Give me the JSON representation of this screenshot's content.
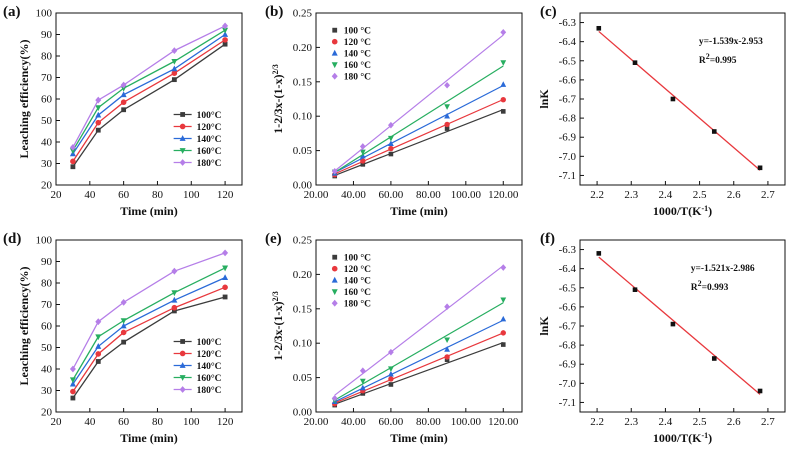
{
  "chart_data": [
    {
      "panel": "(a)",
      "type": "line",
      "xlabel": "Time (min)",
      "ylabel": "Leaching efficiency(%)",
      "xlim": [
        20,
        130
      ],
      "ylim": [
        20,
        100
      ],
      "xticks": [
        20,
        40,
        60,
        80,
        100,
        120
      ],
      "yticks": [
        20,
        30,
        40,
        50,
        60,
        70,
        80,
        90,
        100
      ],
      "x": [
        30,
        45,
        60,
        90,
        120
      ],
      "legend_position": "bottom-right",
      "series": [
        {
          "name": "100°C",
          "color": "#3c3c3c",
          "marker": "square",
          "values": [
            28.5,
            45.5,
            55,
            69,
            85.5
          ]
        },
        {
          "name": "120°C",
          "color": "#e8383d",
          "marker": "circle",
          "values": [
            31,
            49,
            58.5,
            72,
            87.5
          ]
        },
        {
          "name": "140°C",
          "color": "#2a6ad8",
          "marker": "triangle-up",
          "values": [
            34.5,
            52.5,
            62,
            74,
            90
          ]
        },
        {
          "name": "160°C",
          "color": "#27ae60",
          "marker": "triangle-down",
          "values": [
            36,
            56,
            65,
            77.5,
            92
          ]
        },
        {
          "name": "180°C",
          "color": "#b57ee8",
          "marker": "diamond",
          "values": [
            37.5,
            59.5,
            66.5,
            82.5,
            94
          ]
        }
      ]
    },
    {
      "panel": "(b)",
      "type": "scatter",
      "xlabel": "Time (min)",
      "ylabel": "1-2/3x-(1-x)^2/3",
      "ylabel_main": "1-2/3x-(1-x)",
      "ylabel_sup": "2/3",
      "xlim": [
        20,
        130
      ],
      "ylim": [
        0,
        0.25
      ],
      "xticks": [
        20,
        40,
        60,
        80,
        100,
        120
      ],
      "yticks": [
        0.0,
        0.05,
        0.1,
        0.15,
        0.2,
        0.25
      ],
      "x": [
        30,
        45,
        60,
        90,
        120
      ],
      "fit_lines": true,
      "legend_position": "top-left",
      "series": [
        {
          "name": "100 °C",
          "color": "#3c3c3c",
          "marker": "square",
          "values": [
            0.013,
            0.03,
            0.045,
            0.082,
            0.107
          ]
        },
        {
          "name": "120 °C",
          "color": "#e8383d",
          "marker": "circle",
          "values": [
            0.015,
            0.035,
            0.053,
            0.088,
            0.124
          ]
        },
        {
          "name": "140 °C",
          "color": "#2a6ad8",
          "marker": "triangle-up",
          "values": [
            0.017,
            0.042,
            0.06,
            0.1,
            0.146
          ]
        },
        {
          "name": "160 °C",
          "color": "#27ae60",
          "marker": "triangle-down",
          "values": [
            0.019,
            0.048,
            0.068,
            0.114,
            0.178
          ]
        },
        {
          "name": "180 °C",
          "color": "#b57ee8",
          "marker": "diamond",
          "values": [
            0.02,
            0.056,
            0.087,
            0.145,
            0.222
          ]
        }
      ]
    },
    {
      "panel": "(c)",
      "type": "scatter",
      "xlabel": "1000/T(K⁻¹)",
      "xlabel_main": "1000/T(K",
      "xlabel_sup": "-1",
      "xlabel_end": ")",
      "ylabel": "lnK",
      "xlim": [
        2.15,
        2.75
      ],
      "ylim": [
        -7.15,
        -6.25
      ],
      "xticks": [
        2.2,
        2.3,
        2.4,
        2.5,
        2.6,
        2.7
      ],
      "yticks": [
        -6.3,
        -6.4,
        -6.5,
        -6.6,
        -6.7,
        -6.8,
        -6.9,
        -7.0,
        -7.1
      ],
      "x": [
        2.205,
        2.311,
        2.422,
        2.543,
        2.677
      ],
      "series": [
        {
          "name": "data",
          "color": "#111111",
          "marker": "square",
          "values": [
            -6.33,
            -6.51,
            -6.7,
            -6.87,
            -7.06
          ]
        }
      ],
      "fit": {
        "slope": -1.539,
        "intercept": -2.953,
        "color": "#e8383d"
      },
      "equation": "y=-1.539x-2.953",
      "r2_label": "R",
      "r2_value": "=0.995"
    },
    {
      "panel": "(d)",
      "type": "line",
      "xlabel": "Time (min)",
      "ylabel": "Leaching efficiency(%)",
      "xlim": [
        20,
        130
      ],
      "ylim": [
        20,
        100
      ],
      "xticks": [
        20,
        40,
        60,
        80,
        100,
        120
      ],
      "yticks": [
        20,
        30,
        40,
        50,
        60,
        70,
        80,
        90,
        100
      ],
      "x": [
        30,
        45,
        60,
        90,
        120
      ],
      "legend_position": "bottom-right",
      "series": [
        {
          "name": "100°C",
          "color": "#3c3c3c",
          "marker": "square",
          "values": [
            26.5,
            43.5,
            52.5,
            67,
            73.5
          ]
        },
        {
          "name": "120°C",
          "color": "#e8383d",
          "marker": "circle",
          "values": [
            29.5,
            47,
            57,
            68.5,
            78
          ]
        },
        {
          "name": "140°C",
          "color": "#2a6ad8",
          "marker": "triangle-up",
          "values": [
            33,
            50.5,
            60,
            72,
            82.5
          ]
        },
        {
          "name": "160°C",
          "color": "#27ae60",
          "marker": "triangle-down",
          "values": [
            35,
            55,
            62.5,
            75.5,
            87
          ]
        },
        {
          "name": "180°C",
          "color": "#b57ee8",
          "marker": "diamond",
          "values": [
            40,
            62,
            71,
            85.5,
            94
          ]
        }
      ]
    },
    {
      "panel": "(e)",
      "type": "scatter",
      "xlabel": "Time (min)",
      "ylabel": "1-2/3x-(1-x)^2/3",
      "ylabel_main": "1-2/3x-(1-x)",
      "ylabel_sup": "2/3",
      "xlim": [
        20,
        130
      ],
      "ylim": [
        0,
        0.25
      ],
      "xticks": [
        20,
        40,
        60,
        80,
        100,
        120
      ],
      "yticks": [
        0.0,
        0.05,
        0.1,
        0.15,
        0.2,
        0.25
      ],
      "x": [
        30,
        45,
        60,
        90,
        120
      ],
      "fit_lines": true,
      "legend_position": "top-left",
      "series": [
        {
          "name": "100 °C",
          "color": "#3c3c3c",
          "marker": "square",
          "values": [
            0.01,
            0.027,
            0.04,
            0.076,
            0.098
          ]
        },
        {
          "name": "120 °C",
          "color": "#e8383d",
          "marker": "circle",
          "values": [
            0.012,
            0.031,
            0.048,
            0.08,
            0.115
          ]
        },
        {
          "name": "140 °C",
          "color": "#2a6ad8",
          "marker": "triangle-up",
          "values": [
            0.015,
            0.035,
            0.055,
            0.091,
            0.135
          ]
        },
        {
          "name": "160 °C",
          "color": "#27ae60",
          "marker": "triangle-down",
          "values": [
            0.017,
            0.045,
            0.063,
            0.105,
            0.163
          ]
        },
        {
          "name": "180 °C",
          "color": "#b57ee8",
          "marker": "diamond",
          "values": [
            0.02,
            0.06,
            0.087,
            0.153,
            0.21
          ]
        }
      ]
    },
    {
      "panel": "(f)",
      "type": "scatter",
      "xlabel": "1000/T(K⁻¹)",
      "xlabel_main": "1000/T(K",
      "xlabel_sup": "-1",
      "xlabel_end": ")",
      "ylabel": "lnK",
      "xlim": [
        2.15,
        2.75
      ],
      "ylim": [
        -7.15,
        -6.25
      ],
      "xticks": [
        2.2,
        2.3,
        2.4,
        2.5,
        2.6,
        2.7
      ],
      "yticks": [
        -6.3,
        -6.4,
        -6.5,
        -6.6,
        -6.7,
        -6.8,
        -6.9,
        -7.0,
        -7.1
      ],
      "x": [
        2.205,
        2.311,
        2.422,
        2.543,
        2.677
      ],
      "series": [
        {
          "name": "data",
          "color": "#111111",
          "marker": "square",
          "values": [
            -6.32,
            -6.51,
            -6.69,
            -6.87,
            -7.04
          ]
        }
      ],
      "fit": {
        "slope": -1.521,
        "intercept": -2.986,
        "color": "#e8383d"
      },
      "equation": "y=-1.521x-2.986",
      "r2_label": "R",
      "r2_value": "=0.993"
    }
  ]
}
